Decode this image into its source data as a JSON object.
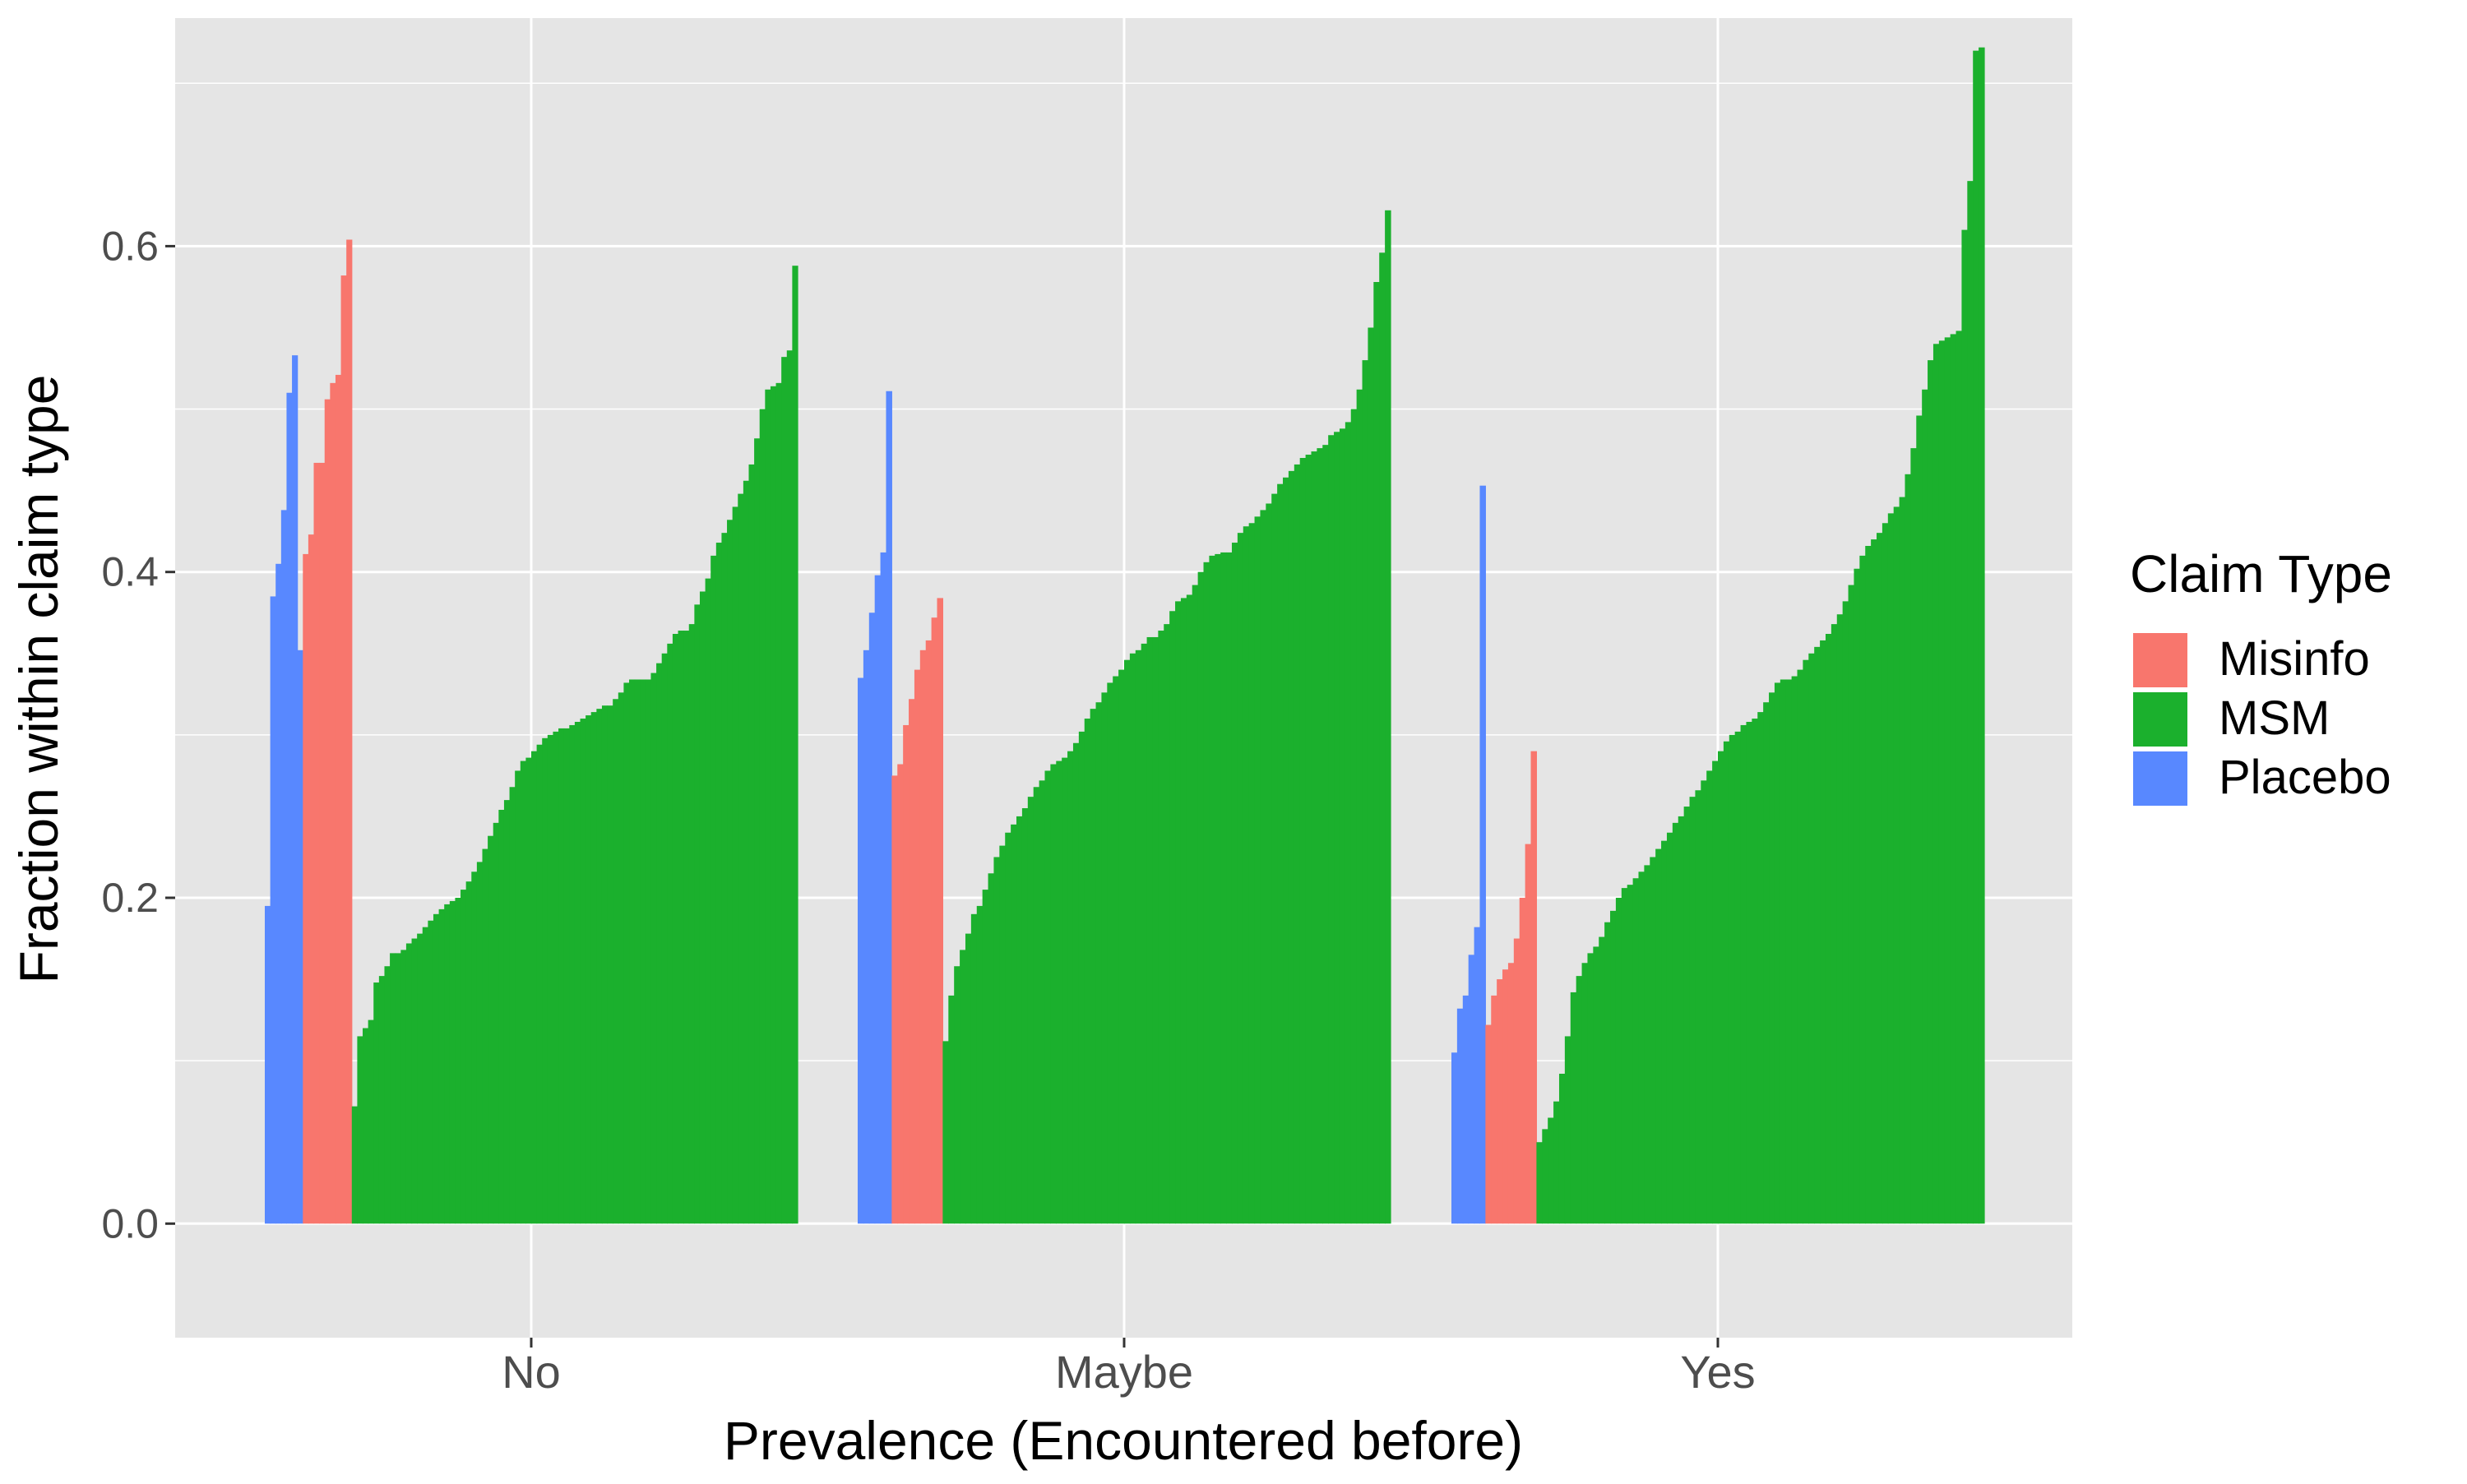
{
  "chart_data": {
    "type": "bar",
    "title": "",
    "xlabel": "Prevalence (Encountered before)",
    "ylabel": "Fraction within claim type",
    "categories": [
      "No",
      "Maybe",
      "Yes"
    ],
    "y_ticks": [
      "0.0",
      "0.2",
      "0.4",
      "0.6"
    ],
    "ylim": [
      -0.07,
      0.74
    ],
    "grid": true,
    "legend": {
      "title": "Claim Type",
      "placement": "right",
      "entries": [
        "Misinfo",
        "MSM",
        "Placebo"
      ]
    },
    "colors": {
      "Misinfo": "#F8766D",
      "MSM": "#1BB02D",
      "Placebo": "#5888FF",
      "panel": "#E5E5E5",
      "grid": "#FFFFFF",
      "text": "#4D4D4D"
    },
    "groups": [
      {
        "category": "No",
        "series": [
          {
            "name": "Placebo",
            "values": [
              0.195,
              0.385,
              0.405,
              0.438,
              0.51,
              0.533,
              0.352
            ]
          },
          {
            "name": "Misinfo",
            "values": [
              0.411,
              0.423,
              0.467,
              0.467,
              0.506,
              0.516,
              0.521,
              0.582,
              0.604
            ]
          },
          {
            "name": "MSM",
            "values": [
              0.072,
              0.115,
              0.12,
              0.125,
              0.148,
              0.152,
              0.158,
              0.166,
              0.166,
              0.168,
              0.172,
              0.175,
              0.178,
              0.182,
              0.186,
              0.19,
              0.193,
              0.196,
              0.198,
              0.2,
              0.205,
              0.21,
              0.216,
              0.222,
              0.23,
              0.238,
              0.246,
              0.254,
              0.26,
              0.268,
              0.278,
              0.284,
              0.286,
              0.29,
              0.294,
              0.298,
              0.3,
              0.302,
              0.304,
              0.304,
              0.306,
              0.308,
              0.31,
              0.312,
              0.314,
              0.316,
              0.318,
              0.318,
              0.322,
              0.326,
              0.332,
              0.334,
              0.334,
              0.334,
              0.334,
              0.338,
              0.344,
              0.35,
              0.356,
              0.362,
              0.364,
              0.364,
              0.368,
              0.38,
              0.388,
              0.396,
              0.41,
              0.418,
              0.424,
              0.432,
              0.44,
              0.448,
              0.456,
              0.466,
              0.482,
              0.5,
              0.512,
              0.514,
              0.516,
              0.532,
              0.536,
              0.588
            ]
          }
        ]
      },
      {
        "category": "Maybe",
        "series": [
          {
            "name": "Placebo",
            "values": [
              0.335,
              0.352,
              0.375,
              0.398,
              0.412,
              0.511
            ]
          },
          {
            "name": "Misinfo",
            "values": [
              0.275,
              0.282,
              0.306,
              0.322,
              0.34,
              0.352,
              0.358,
              0.372,
              0.384
            ]
          },
          {
            "name": "MSM",
            "values": [
              0.112,
              0.14,
              0.158,
              0.168,
              0.178,
              0.19,
              0.195,
              0.205,
              0.215,
              0.225,
              0.232,
              0.24,
              0.245,
              0.25,
              0.255,
              0.262,
              0.268,
              0.272,
              0.278,
              0.282,
              0.284,
              0.286,
              0.29,
              0.295,
              0.302,
              0.31,
              0.316,
              0.32,
              0.326,
              0.332,
              0.336,
              0.34,
              0.346,
              0.35,
              0.352,
              0.356,
              0.36,
              0.36,
              0.364,
              0.368,
              0.376,
              0.382,
              0.384,
              0.386,
              0.392,
              0.4,
              0.406,
              0.41,
              0.411,
              0.412,
              0.412,
              0.418,
              0.424,
              0.428,
              0.43,
              0.434,
              0.438,
              0.442,
              0.448,
              0.454,
              0.458,
              0.462,
              0.466,
              0.47,
              0.472,
              0.474,
              0.476,
              0.478,
              0.484,
              0.486,
              0.488,
              0.492,
              0.5,
              0.512,
              0.53,
              0.55,
              0.578,
              0.596,
              0.622
            ]
          }
        ]
      },
      {
        "category": "Yes",
        "series": [
          {
            "name": "Placebo",
            "values": [
              0.105,
              0.132,
              0.14,
              0.165,
              0.182,
              0.453
            ]
          },
          {
            "name": "Misinfo",
            "values": [
              0.122,
              0.14,
              0.15,
              0.156,
              0.16,
              0.175,
              0.2,
              0.233,
              0.29
            ]
          },
          {
            "name": "MSM",
            "values": [
              0.05,
              0.058,
              0.065,
              0.075,
              0.092,
              0.115,
              0.142,
              0.152,
              0.16,
              0.166,
              0.17,
              0.176,
              0.185,
              0.192,
              0.2,
              0.206,
              0.208,
              0.212,
              0.216,
              0.22,
              0.225,
              0.23,
              0.235,
              0.24,
              0.246,
              0.25,
              0.256,
              0.262,
              0.266,
              0.272,
              0.278,
              0.284,
              0.29,
              0.296,
              0.3,
              0.302,
              0.306,
              0.308,
              0.31,
              0.314,
              0.32,
              0.326,
              0.332,
              0.334,
              0.334,
              0.336,
              0.34,
              0.346,
              0.35,
              0.354,
              0.358,
              0.362,
              0.368,
              0.374,
              0.382,
              0.392,
              0.402,
              0.41,
              0.416,
              0.42,
              0.424,
              0.43,
              0.436,
              0.44,
              0.446,
              0.46,
              0.476,
              0.496,
              0.512,
              0.53,
              0.54,
              0.542,
              0.544,
              0.546,
              0.548,
              0.61,
              0.64,
              0.72,
              0.722
            ]
          }
        ]
      }
    ]
  }
}
